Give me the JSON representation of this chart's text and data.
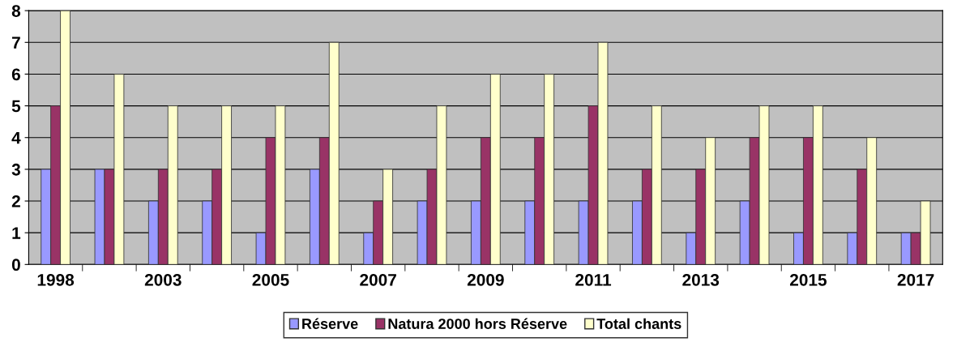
{
  "chart_data": {
    "type": "bar",
    "categories": [
      "1998",
      null,
      "2003",
      null,
      "2005",
      null,
      "2007",
      null,
      "2009",
      null,
      "2011",
      null,
      "2013",
      null,
      "2015",
      null,
      "2017"
    ],
    "series": [
      {
        "name": "Réserve",
        "color": "#9999ff",
        "values": [
          3,
          3,
          2,
          2,
          1,
          3,
          1,
          2,
          2,
          2,
          2,
          2,
          1,
          2,
          1,
          1,
          1
        ]
      },
      {
        "name": "Natura 2000 hors Réserve",
        "color": "#993366",
        "values": [
          5,
          3,
          3,
          3,
          4,
          4,
          2,
          3,
          4,
          4,
          5,
          3,
          3,
          4,
          4,
          3,
          1
        ]
      },
      {
        "name": "Total chants",
        "color": "#ffffcc",
        "values": [
          8,
          6,
          5,
          5,
          5,
          7,
          3,
          5,
          6,
          6,
          7,
          5,
          4,
          5,
          5,
          4,
          2
        ]
      }
    ],
    "ylim": [
      0,
      8
    ],
    "yticks": [
      0,
      1,
      2,
      3,
      4,
      5,
      6,
      7,
      8
    ],
    "grid": "y",
    "legend": "bottom"
  }
}
